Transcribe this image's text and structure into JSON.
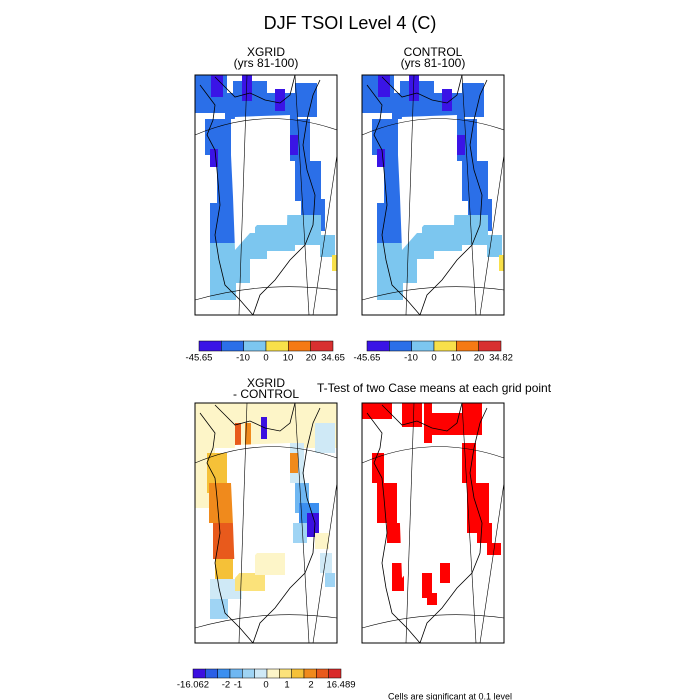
{
  "title": "DJF TSOI Level 4 (C)",
  "panels": [
    {
      "title": "XGRID",
      "subtitle": "(yrs 81-100)",
      "colorbar": {
        "colors": [
          "#3a14e6",
          "#2b6fe8",
          "#7cc6ef",
          "#f8e04a",
          "#f57a14",
          "#d83030"
        ],
        "labels": [
          -45.65,
          -10,
          0,
          10,
          20,
          34.65
        ]
      }
    },
    {
      "title": "CONTROL",
      "subtitle": "(yrs 81-100)",
      "colorbar": {
        "colors": [
          "#3a14e6",
          "#2b6fe8",
          "#7cc6ef",
          "#f8e04a",
          "#f57a14",
          "#d83030"
        ],
        "labels": [
          -45.65,
          -10,
          0,
          10,
          20,
          34.82
        ]
      }
    },
    {
      "title": "XGRID",
      "subtitle": "- CONTROL",
      "colorbar": {
        "colors": [
          "#3b0fe0",
          "#2a5fe6",
          "#3b8ff0",
          "#6fb7f2",
          "#9fd4f4",
          "#cfe9f6",
          "#fdf5c8",
          "#fbe27a",
          "#f5c138",
          "#f08a1c",
          "#e85a1c",
          "#d92a2a"
        ],
        "labels": [
          -16.062,
          -2,
          -1,
          0,
          1,
          2,
          16.489
        ]
      }
    },
    {
      "title": "T-Test of two Case means at each grid point",
      "note": "Cells are significant at 0.1 level"
    }
  ]
}
